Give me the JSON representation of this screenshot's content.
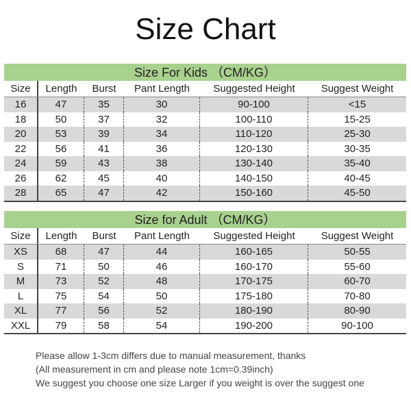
{
  "title": "Size Chart",
  "columns": [
    "Size",
    "Length",
    "Burst",
    "Pant Length",
    "Suggested Height",
    "Suggest Weight"
  ],
  "kids": {
    "banner": "Size For Kids （CM/KG）",
    "rows": [
      [
        "16",
        "47",
        "35",
        "30",
        "90-100",
        "<15"
      ],
      [
        "18",
        "50",
        "37",
        "32",
        "100-110",
        "15-25"
      ],
      [
        "20",
        "53",
        "39",
        "34",
        "110-120",
        "25-30"
      ],
      [
        "22",
        "56",
        "41",
        "36",
        "120-130",
        "30-35"
      ],
      [
        "24",
        "59",
        "43",
        "38",
        "130-140",
        "35-40"
      ],
      [
        "26",
        "62",
        "45",
        "40",
        "140-150",
        "40-45"
      ],
      [
        "28",
        "65",
        "47",
        "42",
        "150-160",
        "45-50"
      ]
    ]
  },
  "adult": {
    "banner": "Size for Adult （CM/KG）",
    "rows": [
      [
        "XS",
        "68",
        "47",
        "44",
        "160-165",
        "50-55"
      ],
      [
        "S",
        "71",
        "50",
        "46",
        "160-170",
        "55-60"
      ],
      [
        "M",
        "73",
        "52",
        "48",
        "170-175",
        "60-70"
      ],
      [
        "L",
        "75",
        "54",
        "50",
        "175-180",
        "70-80"
      ],
      [
        "XL",
        "77",
        "56",
        "52",
        "180-190",
        "80-90"
      ],
      [
        "XXL",
        "79",
        "58",
        "54",
        "190-200",
        "90-100"
      ]
    ]
  },
  "notes": [
    "Please allow 1-3cm differs due to manual measurement, thanks",
    "(All measurement in cm and please note 1cm=0.39inch)",
    "We suggest you choose one size Larger if you weight is over the suggest one"
  ],
  "colors": {
    "banner": "#a9d18e",
    "stripe": "#d9d9d9"
  }
}
